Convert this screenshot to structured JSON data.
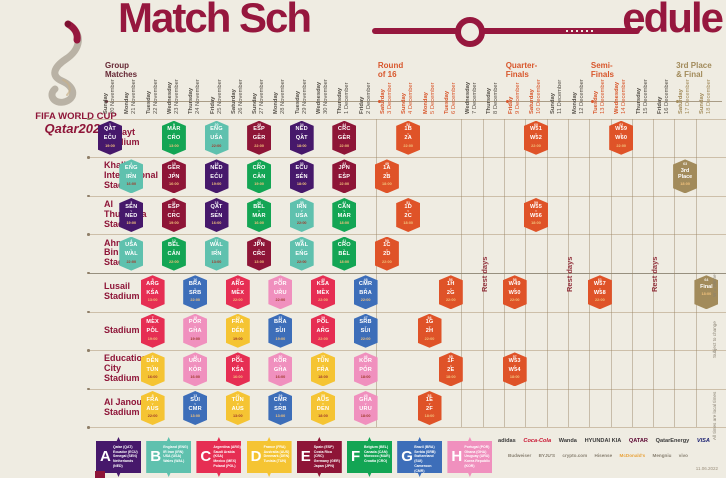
{
  "title": {
    "left": "Match Sch",
    "right": "edule",
    "full": "Match Schedule"
  },
  "logo": {
    "line1": "FIFA WORLD CUP",
    "line2": "Qatar2022"
  },
  "stages": [
    {
      "label": "Group\nMatches",
      "col": 0,
      "color": "#652734"
    },
    {
      "label": "Round\nof 16",
      "col": 13,
      "color": "#D8562B"
    },
    {
      "label": "Quarter-\nFinals",
      "col": 19,
      "color": "#D8562B"
    },
    {
      "label": "Semi-\nFinals",
      "col": 23,
      "color": "#D8562B"
    },
    {
      "label": "3rd Place\n& Final",
      "col": 27,
      "color": "#A28B5B"
    }
  ],
  "date_colors": {
    "g": "#57524A",
    "ko": "#D8562B",
    "rest": "#57524A",
    "fin": "#A28B5B"
  },
  "dates": [
    {
      "day": "Sunday",
      "date": "20 November",
      "type": "g"
    },
    {
      "day": "Monday",
      "date": "21 November",
      "type": "g"
    },
    {
      "day": "Tuesday",
      "date": "22 November",
      "type": "g"
    },
    {
      "day": "Wednesday",
      "date": "23 November",
      "type": "g"
    },
    {
      "day": "Thursday",
      "date": "24 November",
      "type": "g"
    },
    {
      "day": "Friday",
      "date": "25 November",
      "type": "g"
    },
    {
      "day": "Saturday",
      "date": "26 November",
      "type": "g"
    },
    {
      "day": "Sunday",
      "date": "27 November",
      "type": "g"
    },
    {
      "day": "Monday",
      "date": "28 November",
      "type": "g"
    },
    {
      "day": "Tuesday",
      "date": "29 November",
      "type": "g"
    },
    {
      "day": "Wednesday",
      "date": "30 November",
      "type": "g"
    },
    {
      "day": "Thursday",
      "date": "1 December",
      "type": "g"
    },
    {
      "day": "Friday",
      "date": "2 December",
      "type": "g"
    },
    {
      "day": "Saturday",
      "date": "3 December",
      "type": "ko"
    },
    {
      "day": "Sunday",
      "date": "4 December",
      "type": "ko"
    },
    {
      "day": "Monday",
      "date": "5 December",
      "type": "ko"
    },
    {
      "day": "Tuesday",
      "date": "6 December",
      "type": "ko"
    },
    {
      "day": "Wednesday",
      "date": "7 December",
      "type": "rest"
    },
    {
      "day": "Thursday",
      "date": "8 December",
      "type": "rest"
    },
    {
      "day": "Friday",
      "date": "9 December",
      "type": "ko"
    },
    {
      "day": "Saturday",
      "date": "10 December",
      "type": "ko"
    },
    {
      "day": "Sunday",
      "date": "11 December",
      "type": "rest"
    },
    {
      "day": "Monday",
      "date": "12 December",
      "type": "rest"
    },
    {
      "day": "Tuesday",
      "date": "13 December",
      "type": "ko"
    },
    {
      "day": "Wednesday",
      "date": "14 December",
      "type": "ko"
    },
    {
      "day": "Thursday",
      "date": "15 December",
      "type": "rest"
    },
    {
      "day": "Friday",
      "date": "16 December",
      "type": "rest"
    },
    {
      "day": "Saturday",
      "date": "17 December",
      "type": "fin"
    },
    {
      "day": "Sunday",
      "date": "18 December",
      "type": "fin"
    }
  ],
  "groups": {
    "A": {
      "color": "#46186B",
      "light": false,
      "teams": [
        "Qatar (QAT)",
        "Ecuador (ECU)",
        "Senegal (SEN)",
        "Netherlands (NED)"
      ]
    },
    "B": {
      "color": "#5FC1AE",
      "light": true,
      "teams": [
        "England (ENG)",
        "IR Iran (IRN)",
        "USA (USA)",
        "Wales (WAL)"
      ]
    },
    "C": {
      "color": "#E62E53",
      "light": false,
      "teams": [
        "Argentina (ARG)",
        "Saudi Arabia (KSA)",
        "Mexico (MEX)",
        "Poland (POL)"
      ]
    },
    "D": {
      "color": "#F5C433",
      "light": true,
      "teams": [
        "France (FRA)",
        "Australia (AUS)",
        "Denmark (DEN)",
        "Tunisia (TUN)"
      ]
    },
    "E": {
      "color": "#8E1537",
      "light": false,
      "teams": [
        "Spain (ESP)",
        "Costa Rica (CRC)",
        "Germany (GER)",
        "Japan (JPN)"
      ]
    },
    "F": {
      "color": "#13A554",
      "light": false,
      "teams": [
        "Belgium (BEL)",
        "Canada (CAN)",
        "Morocco (MAR)",
        "Croatia (CRO)"
      ]
    },
    "G": {
      "color": "#3D6EB9",
      "light": false,
      "teams": [
        "Brazil (BRA)",
        "Serbia (SRB)",
        "Switzerland (SUI)",
        "Cameroon (CMR)"
      ]
    },
    "H": {
      "color": "#F090BE",
      "light": true,
      "teams": [
        "Portugal (POR)",
        "Ghana (GHA)",
        "Uruguay (URU)",
        "Korea Republic (KOR)"
      ]
    },
    "KO": {
      "color": "#DF5328",
      "light": false,
      "teams": []
    },
    "GOLD": {
      "color": "#A28B5B",
      "light": false,
      "teams": []
    }
  },
  "legend_order": [
    "A",
    "B",
    "C",
    "D",
    "E",
    "F",
    "G",
    "H"
  ],
  "stadiums": [
    {
      "name": "Al Bayt\nStadium",
      "matches": [
        {
          "col": 0,
          "no": "1",
          "a": "QAT",
          "b": "ECU",
          "t": "19:00",
          "g": "A"
        },
        {
          "col": 3,
          "no": "9",
          "a": "MAR",
          "b": "CRO",
          "t": "13:00",
          "g": "F"
        },
        {
          "col": 5,
          "no": "20",
          "a": "ENG",
          "b": "USA",
          "t": "22:00",
          "g": "B"
        },
        {
          "col": 7,
          "no": "28",
          "a": "ESP",
          "b": "GER",
          "t": "22:00",
          "g": "E"
        },
        {
          "col": 9,
          "no": "34",
          "a": "NED",
          "b": "QAT",
          "t": "18:00",
          "g": "A"
        },
        {
          "col": 11,
          "no": "44",
          "a": "CRC",
          "b": "GER",
          "t": "22:00",
          "g": "E"
        },
        {
          "col": 14,
          "no": "52",
          "a": "1B",
          "b": "2A",
          "t": "22:00",
          "g": "KO"
        },
        {
          "col": 20,
          "no": "60",
          "a": "W51",
          "b": "W52",
          "t": "22:00",
          "g": "KO"
        },
        {
          "col": 24,
          "no": "62",
          "a": "W59",
          "b": "W60",
          "t": "22:00",
          "g": "KO"
        }
      ]
    },
    {
      "name": "Khalifa\nInternational\nStadium",
      "matches": [
        {
          "col": 1,
          "no": "2",
          "a": "ENG",
          "b": "IRN",
          "t": "16:00",
          "g": "B"
        },
        {
          "col": 3,
          "no": "10",
          "a": "GER",
          "b": "JPN",
          "t": "16:00",
          "g": "E"
        },
        {
          "col": 5,
          "no": "19",
          "a": "NED",
          "b": "ECU",
          "t": "19:00",
          "g": "A"
        },
        {
          "col": 7,
          "no": "27",
          "a": "CRO",
          "b": "CAN",
          "t": "19:00",
          "g": "F"
        },
        {
          "col": 9,
          "no": "33",
          "a": "ECU",
          "b": "SEN",
          "t": "18:00",
          "g": "A"
        },
        {
          "col": 11,
          "no": "43",
          "a": "JPN",
          "b": "ESP",
          "t": "22:00",
          "g": "E"
        },
        {
          "col": 13,
          "no": "49",
          "a": "1A",
          "b": "2B",
          "t": "18:00",
          "g": "KO"
        },
        {
          "col": 27,
          "no": "63",
          "single": "3rd\nPlace",
          "t": "18:00",
          "g": "GOLD"
        }
      ]
    },
    {
      "name": "Al\nThumama\nStadium",
      "matches": [
        {
          "col": 1,
          "no": "3",
          "a": "SEN",
          "b": "NED",
          "t": "19:00",
          "g": "A"
        },
        {
          "col": 3,
          "no": "11",
          "a": "ESP",
          "b": "CRC",
          "t": "19:00",
          "g": "E"
        },
        {
          "col": 5,
          "no": "18",
          "a": "QAT",
          "b": "SEN",
          "t": "16:00",
          "g": "A"
        },
        {
          "col": 7,
          "no": "26",
          "a": "BEL",
          "b": "MAR",
          "t": "16:00",
          "g": "F"
        },
        {
          "col": 9,
          "no": "35",
          "a": "IRN",
          "b": "USA",
          "t": "22:00",
          "g": "B"
        },
        {
          "col": 11,
          "no": "42",
          "a": "CAN",
          "b": "MAR",
          "t": "18:00",
          "g": "F"
        },
        {
          "col": 14,
          "no": "51",
          "a": "1D",
          "b": "2C",
          "t": "18:00",
          "g": "KO"
        },
        {
          "col": 20,
          "no": "59",
          "a": "W55",
          "b": "W56",
          "t": "18:00",
          "g": "KO"
        }
      ]
    },
    {
      "name": "Ahmad\nBin Ali\nStadium",
      "matches": [
        {
          "col": 1,
          "no": "4",
          "a": "USA",
          "b": "WAL",
          "t": "22:00",
          "g": "B"
        },
        {
          "col": 3,
          "no": "12",
          "a": "BEL",
          "b": "CAN",
          "t": "22:00",
          "g": "F"
        },
        {
          "col": 5,
          "no": "17",
          "a": "WAL",
          "b": "IRN",
          "t": "13:00",
          "g": "B"
        },
        {
          "col": 7,
          "no": "25",
          "a": "JPN",
          "b": "CRC",
          "t": "13:00",
          "g": "E"
        },
        {
          "col": 9,
          "no": "36",
          "a": "WAL",
          "b": "ENG",
          "t": "22:00",
          "g": "B"
        },
        {
          "col": 11,
          "no": "41",
          "a": "CRO",
          "b": "BEL",
          "t": "18:00",
          "g": "F"
        },
        {
          "col": 13,
          "no": "50",
          "a": "1C",
          "b": "2D",
          "t": "22:00",
          "g": "KO"
        }
      ]
    },
    {
      "name": "Lusail\nStadium",
      "matches": [
        {
          "col": 2,
          "no": "5",
          "a": "ARG",
          "b": "KSA",
          "t": "13:00",
          "g": "C"
        },
        {
          "col": 4,
          "no": "16",
          "a": "BRA",
          "b": "SRB",
          "t": "22:00",
          "g": "G"
        },
        {
          "col": 6,
          "no": "24",
          "a": "ARG",
          "b": "MEX",
          "t": "22:00",
          "g": "C"
        },
        {
          "col": 8,
          "no": "32",
          "a": "POR",
          "b": "URU",
          "t": "22:00",
          "g": "H"
        },
        {
          "col": 10,
          "no": "40",
          "a": "KSA",
          "b": "MEX",
          "t": "22:00",
          "g": "C"
        },
        {
          "col": 12,
          "no": "48",
          "a": "CMR",
          "b": "BRA",
          "t": "22:00",
          "g": "G"
        },
        {
          "col": 16,
          "no": "56",
          "a": "1H",
          "b": "2G",
          "t": "22:00",
          "g": "KO"
        },
        {
          "col": 19,
          "no": "58",
          "a": "W49",
          "b": "W50",
          "t": "22:00",
          "g": "KO"
        },
        {
          "col": 23,
          "no": "61",
          "a": "W57",
          "b": "W58",
          "t": "22:00",
          "g": "KO"
        },
        {
          "col": 28,
          "no": "64",
          "single": "Final",
          "t": "18:00",
          "g": "GOLD"
        }
      ]
    },
    {
      "name": "Stadium 974",
      "matches": [
        {
          "col": 2,
          "no": "7",
          "a": "MEX",
          "b": "POL",
          "t": "19:00",
          "g": "C"
        },
        {
          "col": 4,
          "no": "15",
          "a": "POR",
          "b": "GHA",
          "t": "19:00",
          "g": "H"
        },
        {
          "col": 6,
          "no": "23",
          "a": "FRA",
          "b": "DEN",
          "t": "19:00",
          "g": "D"
        },
        {
          "col": 8,
          "no": "31",
          "a": "BRA",
          "b": "SUI",
          "t": "19:00",
          "g": "G"
        },
        {
          "col": 10,
          "no": "39",
          "a": "POL",
          "b": "ARG",
          "t": "22:00",
          "g": "C"
        },
        {
          "col": 12,
          "no": "47",
          "a": "SRB",
          "b": "SUI",
          "t": "22:00",
          "g": "G"
        },
        {
          "col": 15,
          "no": "54",
          "a": "1G",
          "b": "2H",
          "t": "22:00",
          "g": "KO"
        }
      ]
    },
    {
      "name": "Education\nCity\nStadium",
      "matches": [
        {
          "col": 2,
          "no": "6",
          "a": "DEN",
          "b": "TUN",
          "t": "16:00",
          "g": "D"
        },
        {
          "col": 4,
          "no": "14",
          "a": "URU",
          "b": "KOR",
          "t": "16:00",
          "g": "H"
        },
        {
          "col": 6,
          "no": "22",
          "a": "POL",
          "b": "KSA",
          "t": "16:00",
          "g": "C"
        },
        {
          "col": 8,
          "no": "30",
          "a": "KOR",
          "b": "GHA",
          "t": "16:00",
          "g": "H"
        },
        {
          "col": 10,
          "no": "37",
          "a": "TUN",
          "b": "FRA",
          "t": "18:00",
          "g": "D"
        },
        {
          "col": 12,
          "no": "46",
          "a": "KOR",
          "b": "POR",
          "t": "18:00",
          "g": "H"
        },
        {
          "col": 16,
          "no": "55",
          "a": "1F",
          "b": "2E",
          "t": "18:00",
          "g": "KO"
        },
        {
          "col": 19,
          "no": "57",
          "a": "W53",
          "b": "W54",
          "t": "18:00",
          "g": "KO"
        }
      ]
    },
    {
      "name": "Al Janoub\nStadium",
      "matches": [
        {
          "col": 2,
          "no": "8",
          "a": "FRA",
          "b": "AUS",
          "t": "22:00",
          "g": "D"
        },
        {
          "col": 4,
          "no": "13",
          "a": "SUI",
          "b": "CMR",
          "t": "13:00",
          "g": "G"
        },
        {
          "col": 6,
          "no": "21",
          "a": "TUN",
          "b": "AUS",
          "t": "13:00",
          "g": "D"
        },
        {
          "col": 8,
          "no": "29",
          "a": "CMR",
          "b": "SRB",
          "t": "13:00",
          "g": "G"
        },
        {
          "col": 10,
          "no": "38",
          "a": "AUS",
          "b": "DEN",
          "t": "18:00",
          "g": "D"
        },
        {
          "col": 12,
          "no": "45",
          "a": "GHA",
          "b": "URU",
          "t": "18:00",
          "g": "H"
        },
        {
          "col": 15,
          "no": "53",
          "a": "1E",
          "b": "2F",
          "t": "18:00",
          "g": "KO"
        }
      ]
    }
  ],
  "rest_label": "Rest days",
  "rest_positions_cols": [
    17.5,
    21.5,
    25.5
  ],
  "side_notes": [
    "W = Winner",
    "Subject to change",
    "All times are local times"
  ],
  "sponsors_row1": [
    "adidas",
    "Coca-Cola",
    "Wanda",
    "HYUNDAI KIA",
    "QATAR",
    "QatarEnergy",
    "VISA"
  ],
  "sponsors_row2": [
    "Budweiser",
    "BYJU'S",
    "crypto.com",
    "Hisense",
    "McDonald's",
    "Mengniu",
    "vivo"
  ],
  "footer_note": "11.06.2022",
  "palette": {
    "maroon": "#96173E",
    "orange": "#DF5328",
    "tan": "#A28B5B",
    "background": "#EFECE2"
  }
}
